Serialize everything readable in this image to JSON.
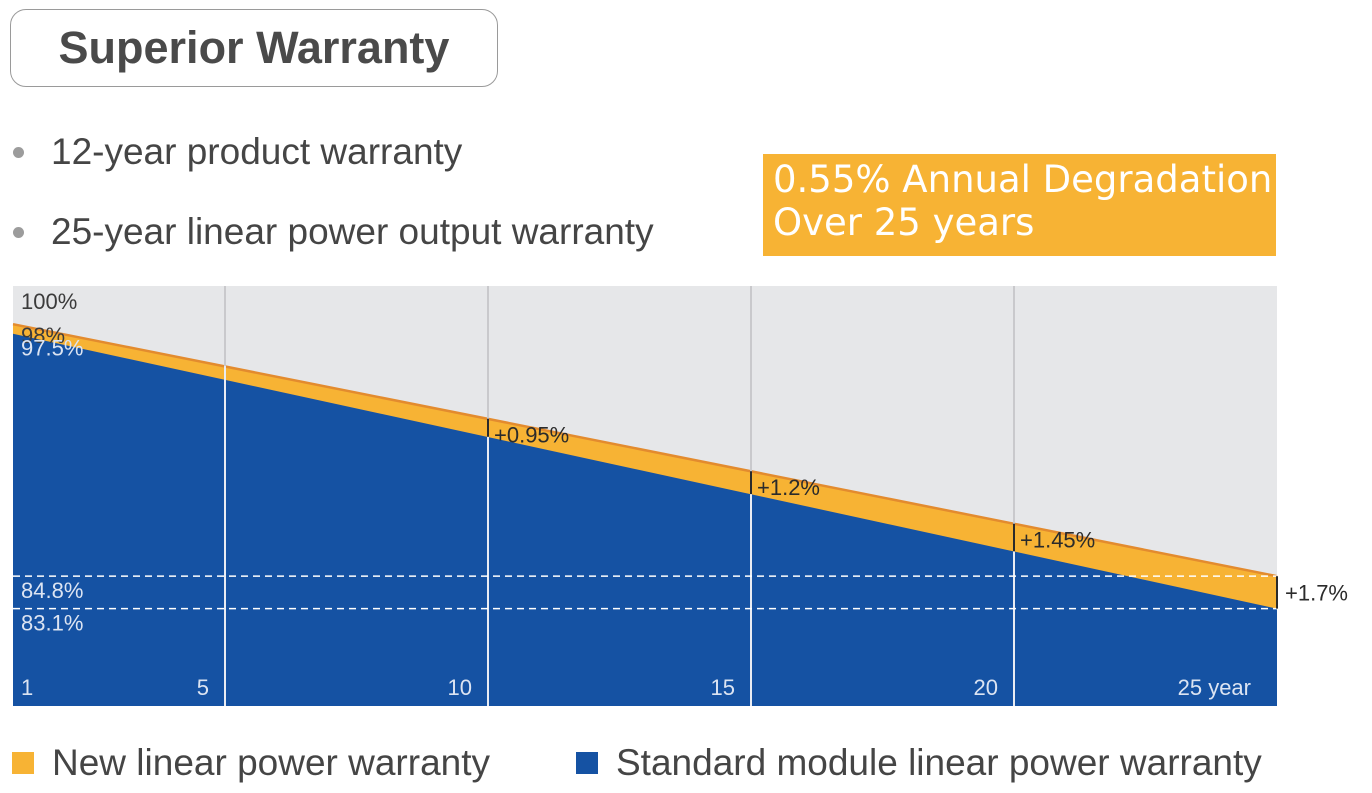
{
  "title": "Superior Warranty",
  "bullets": [
    "12-year product warranty",
    "25-year linear power output warranty"
  ],
  "callout": {
    "line1": "0.55% Annual Degradation",
    "line2": "Over 25 years"
  },
  "colors": {
    "new_warranty": "#F7B334",
    "standard_warranty": "#1552A3",
    "plot_background": "#E6E7E9",
    "new_warranty_line": "#E38B2E"
  },
  "chart_data": {
    "type": "area",
    "x_ticks": [
      {
        "value": 1,
        "label": "1"
      },
      {
        "value": 5,
        "label": "5"
      },
      {
        "value": 10,
        "label": "10"
      },
      {
        "value": 15,
        "label": "15"
      },
      {
        "value": 20,
        "label": "20"
      },
      {
        "value": 25,
        "label": "25 year"
      }
    ],
    "ylim": [
      78,
      100
    ],
    "xlim": [
      1,
      25
    ],
    "y_labels": [
      {
        "value": 100,
        "label": "100%"
      },
      {
        "value": 98,
        "label": "98%"
      },
      {
        "value": 97.5,
        "label": "97.5%"
      },
      {
        "value": 84.8,
        "label": "84.8%"
      },
      {
        "value": 83.1,
        "label": "83.1%"
      }
    ],
    "reference_lines": [
      84.8,
      83.1
    ],
    "series": [
      {
        "name": "New linear power warranty",
        "x": [
          1,
          25
        ],
        "values": [
          98,
          84.8
        ]
      },
      {
        "name": "Standard module linear power warranty",
        "x": [
          1,
          25
        ],
        "values": [
          97.5,
          83.1
        ]
      }
    ],
    "annotations": [
      {
        "x": 10,
        "label": "+0.95%"
      },
      {
        "x": 15,
        "label": "+1.2%"
      },
      {
        "x": 20,
        "label": "+1.45%"
      },
      {
        "x": 25,
        "label": "+1.7%"
      }
    ],
    "legend": "bottom"
  }
}
